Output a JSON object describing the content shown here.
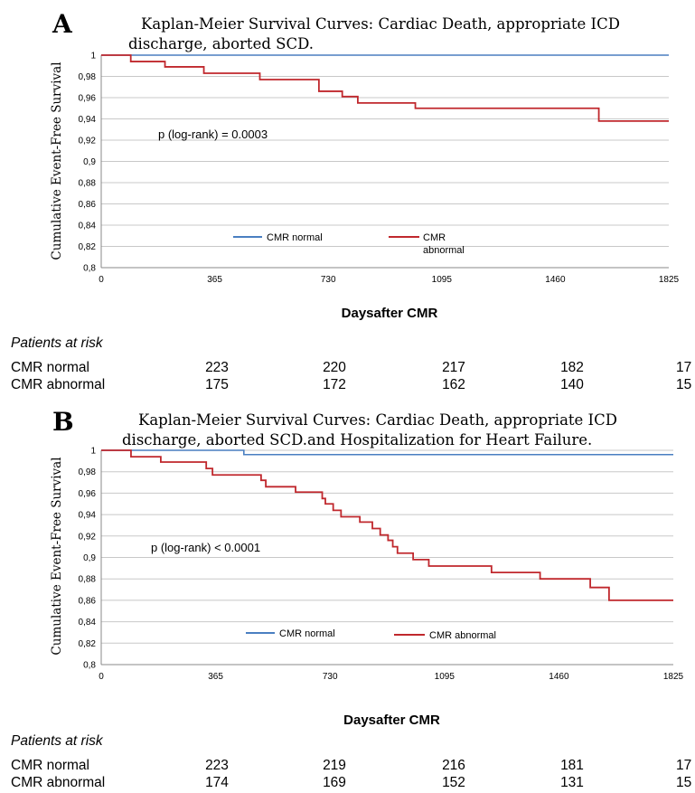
{
  "chart_data": [
    {
      "type": "line",
      "panel_letter": "A",
      "title": "Kaplan-Meier Survival Curves: Cardiac Death, appropriate ICD discharge, aborted SCD.",
      "xlabel": "Daysafter CMR",
      "ylabel": "Cumulative Event-Free Survival",
      "xlim": [
        0,
        1825
      ],
      "ylim": [
        0.8,
        1
      ],
      "x_ticks": [
        "0",
        "365",
        "730",
        "1095",
        "1460",
        "1825"
      ],
      "y_ticks": [
        "0,8",
        "0,82",
        "0,84",
        "0,86",
        "0,88",
        "0,9",
        "0,92",
        "0,94",
        "0,96",
        "0,98",
        "1"
      ],
      "grid": true,
      "annotation": "p (log-rank) = 0.0003",
      "series": [
        {
          "name": "CMR normal",
          "color": "#4a7fc1",
          "step": true,
          "x": [
            0,
            1825
          ],
          "y": [
            1.0,
            1.0
          ]
        },
        {
          "name": "CMR abnormal",
          "color": "#c0282d",
          "step": true,
          "x": [
            0,
            95,
            205,
            330,
            510,
            700,
            730,
            775,
            825,
            1010,
            1600,
            1825
          ],
          "y": [
            1.0,
            0.994,
            0.989,
            0.983,
            0.977,
            0.966,
            0.966,
            0.961,
            0.955,
            0.95,
            0.938,
            0.938
          ]
        }
      ],
      "risk_table": {
        "heading": "Patients at risk",
        "rows": [
          {
            "label": "CMR normal",
            "values": [
              "223",
              "220",
              "217",
              "182",
              "17"
            ]
          },
          {
            "label": "CMR abnormal",
            "values": [
              "175",
              "172",
              "162",
              "140",
              "15"
            ]
          }
        ]
      }
    },
    {
      "type": "line",
      "panel_letter": "B",
      "title": "Kaplan-Meier Survival Curves: Cardiac Death, appropriate ICD discharge, aborted SCD.and Hospitalization for Heart Failure.",
      "xlabel": "Daysafter CMR",
      "ylabel": "Cumulative Event-Free Survival",
      "xlim": [
        0,
        1825
      ],
      "ylim": [
        0.8,
        1
      ],
      "x_ticks": [
        "0",
        "365",
        "730",
        "1095",
        "1460",
        "1825"
      ],
      "y_ticks": [
        "0,8",
        "0,82",
        "0,84",
        "0,86",
        "0,88",
        "0,9",
        "0,92",
        "0,94",
        "0,96",
        "0,98",
        "1"
      ],
      "grid": true,
      "annotation": "p (log-rank) < 0.0001",
      "series": [
        {
          "name": "CMR normal",
          "color": "#4a7fc1",
          "step": true,
          "x": [
            0,
            455,
            1825
          ],
          "y": [
            1.0,
            0.996,
            0.996
          ]
        },
        {
          "name": "CMR abnormal",
          "color": "#c0282d",
          "step": true,
          "x": [
            0,
            95,
            190,
            335,
            355,
            510,
            525,
            545,
            620,
            705,
            715,
            740,
            765,
            825,
            865,
            890,
            915,
            930,
            945,
            995,
            1005,
            1045,
            1060,
            1245,
            1400,
            1560,
            1620,
            1825
          ],
          "y": [
            1.0,
            0.994,
            0.989,
            0.983,
            0.977,
            0.972,
            0.966,
            0.966,
            0.961,
            0.955,
            0.95,
            0.944,
            0.938,
            0.933,
            0.927,
            0.921,
            0.916,
            0.91,
            0.904,
            0.898,
            0.898,
            0.892,
            0.892,
            0.886,
            0.88,
            0.872,
            0.86,
            0.86
          ]
        }
      ],
      "risk_table": {
        "heading": "Patients at risk",
        "rows": [
          {
            "label": "CMR normal",
            "values": [
              "223",
              "219",
              "216",
              "181",
              "17"
            ]
          },
          {
            "label": "CMR abnormal",
            "values": [
              "174",
              "169",
              "152",
              "131",
              "15"
            ]
          }
        ]
      }
    }
  ]
}
